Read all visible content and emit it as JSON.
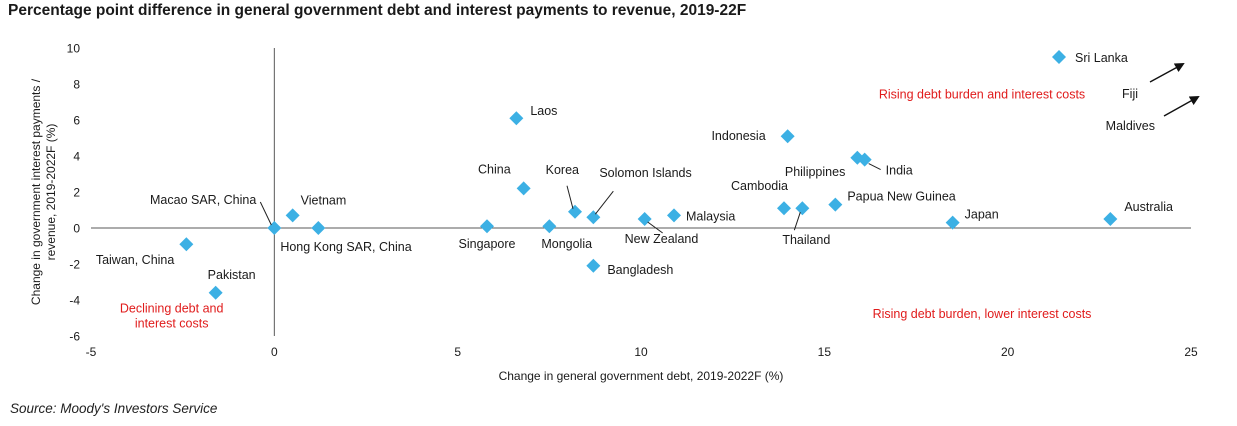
{
  "title": "Percentage point difference in general government debt and interest payments to revenue, 2019-22F",
  "source": "Source: Moody's Investors Service",
  "colors": {
    "marker": "#3cb0e4",
    "annotation": "#e01b1b",
    "text": "#1a1a1a",
    "axis": "#595959"
  },
  "chart_data": {
    "type": "scatter",
    "title": "Percentage point difference in general government debt and interest payments to revenue, 2019-22F",
    "xlabel": "Change in general government debt, 2019-2022F (%)",
    "ylabel": [
      "Change in government interest payments /",
      "revenue, 2019-2022F (%)"
    ],
    "xlim": [
      -5,
      25
    ],
    "ylim": [
      -6,
      10
    ],
    "xticks": [
      -5,
      0,
      5,
      10,
      15,
      20,
      25
    ],
    "yticks": [
      -6,
      -4,
      -2,
      0,
      2,
      4,
      6,
      8,
      10
    ],
    "grid": false,
    "points": [
      {
        "label": "Sri Lanka",
        "x": 21.4,
        "y": 9.5
      },
      {
        "label": "Laos",
        "x": 6.6,
        "y": 6.1
      },
      {
        "label": "Indonesia",
        "x": 14.0,
        "y": 5.1
      },
      {
        "label": "Philippines",
        "x": 15.9,
        "y": 3.9
      },
      {
        "label": "India",
        "x": 16.1,
        "y": 3.8
      },
      {
        "label": "China",
        "x": 6.8,
        "y": 2.2
      },
      {
        "label": "Korea",
        "x": 8.2,
        "y": 0.9
      },
      {
        "label": "Solomon Islands",
        "x": 8.7,
        "y": 0.6
      },
      {
        "label": "Cambodia",
        "x": 13.9,
        "y": 1.1
      },
      {
        "label": "Thailand",
        "x": 14.4,
        "y": 1.1
      },
      {
        "label": "Papua New Guinea",
        "x": 15.3,
        "y": 1.3
      },
      {
        "label": "Malaysia",
        "x": 10.9,
        "y": 0.7
      },
      {
        "label": "New Zealand",
        "x": 10.1,
        "y": 0.5
      },
      {
        "label": "Japan",
        "x": 18.5,
        "y": 0.3
      },
      {
        "label": "Australia",
        "x": 22.8,
        "y": 0.5
      },
      {
        "label": "Singapore",
        "x": 5.8,
        "y": 0.1
      },
      {
        "label": "Mongolia",
        "x": 7.5,
        "y": 0.1
      },
      {
        "label": "Vietnam",
        "x": 0.5,
        "y": 0.7
      },
      {
        "label": "Macao SAR, China",
        "x": 0.0,
        "y": 0.0
      },
      {
        "label": "Hong Kong SAR, China",
        "x": 1.2,
        "y": 0.0
      },
      {
        "label": "Taiwan, China",
        "x": -2.4,
        "y": -0.9
      },
      {
        "label": "Pakistan",
        "x": -1.6,
        "y": -3.6
      },
      {
        "label": "Bangladesh",
        "x": 8.7,
        "y": -2.1
      }
    ],
    "offchart": [
      {
        "label": "Fiji"
      },
      {
        "label": "Maldives"
      }
    ],
    "annotations": [
      {
        "text": [
          "Rising debt burden and interest costs"
        ],
        "x": 19.3,
        "y": 7.2
      },
      {
        "text": [
          "Rising debt burden, lower interest costs"
        ],
        "x": 19.3,
        "y": -5.0
      },
      {
        "text": [
          "Declining debt and",
          "interest costs"
        ],
        "x": -2.8,
        "y": -4.7
      }
    ]
  }
}
